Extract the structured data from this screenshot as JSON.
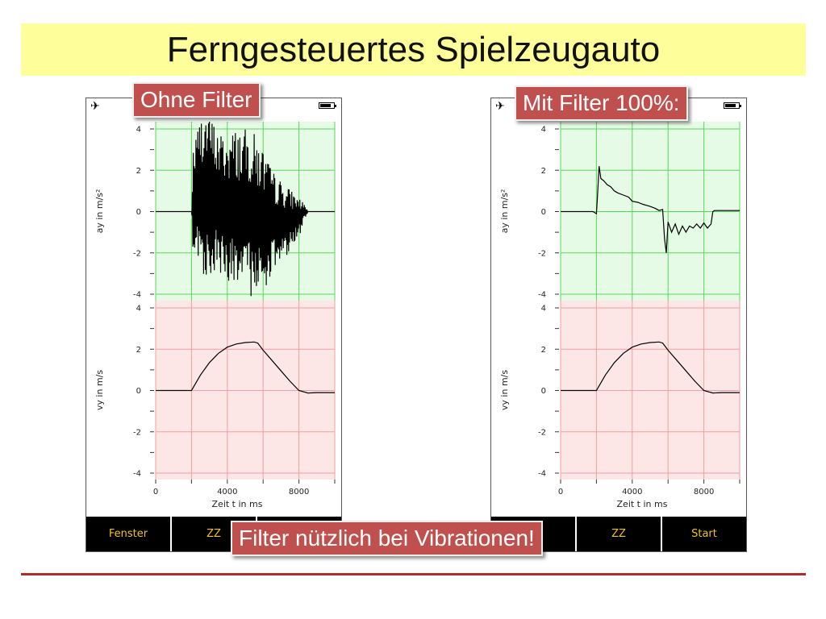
{
  "title": "Ferngesteuertes Spielzeugauto",
  "callouts": {
    "left": "Ohne Filter",
    "right": "Mit Filter 100%:",
    "bottom": "Filter nützlich bei Vibrationen!"
  },
  "status": {
    "plane_icon": "airplane-icon",
    "battery_icon": "battery-icon",
    "battery_level": 0.8,
    "plane_glyph": "✈"
  },
  "tabs_left": [
    "Fenster",
    "ZZ",
    ""
  ],
  "tabs_right": [
    "",
    "ZZ",
    "Start"
  ],
  "colors": {
    "accel_bg": "#e6fbe6",
    "accel_grid": "#58d858",
    "vel_bg": "#fde6e6",
    "vel_grid": "#f0a0a0",
    "callout": "#c0504d",
    "title_bg": "#fefe9a"
  },
  "chart_data": [
    {
      "type": "line",
      "panel": "left",
      "xlabel": "Zeit t in ms",
      "x_ticks": [
        0,
        4000,
        8000
      ],
      "xlim": [
        0,
        10000
      ],
      "subplots": [
        {
          "name": "acceleration",
          "ylabel": "ay in m/s²",
          "ylim": [
            -4,
            4
          ],
          "y_ticks": [
            -4,
            -2,
            0,
            2,
            4
          ],
          "noisy": true,
          "x": [
            0,
            1800,
            2000,
            2100,
            2600,
            3000,
            3500,
            4000,
            4500,
            5000,
            5500,
            6000,
            6500,
            7000,
            7500,
            8000,
            8300,
            8500,
            9000,
            10000
          ],
          "y": [
            0,
            0,
            0,
            0.3,
            1.0,
            0.8,
            0.4,
            0.2,
            0.1,
            0.0,
            -0.2,
            -0.4,
            -0.5,
            -0.5,
            -0.4,
            -0.3,
            0,
            0,
            0,
            0
          ],
          "noise": [
            0,
            0,
            0,
            3.0,
            4.0,
            4.0,
            3.5,
            3.5,
            4.0,
            4.0,
            4.0,
            3.5,
            2.5,
            2.0,
            1.5,
            1.0,
            0.4,
            0,
            0,
            0
          ]
        },
        {
          "name": "velocity",
          "ylabel": "vy in m/s",
          "ylim": [
            -4,
            4
          ],
          "y_ticks": [
            -4,
            -2,
            0,
            2,
            4
          ],
          "x": [
            0,
            2000,
            2100,
            2500,
            3000,
            3500,
            4000,
            4500,
            5000,
            5500,
            5700,
            6000,
            6500,
            7000,
            7500,
            8000,
            8500,
            9000,
            10000
          ],
          "y": [
            0,
            0,
            0.15,
            0.75,
            1.35,
            1.8,
            2.1,
            2.25,
            2.32,
            2.35,
            2.3,
            1.95,
            1.45,
            0.95,
            0.45,
            0,
            -0.12,
            -0.1,
            -0.1
          ]
        }
      ]
    },
    {
      "type": "line",
      "panel": "right",
      "xlabel": "Zeit t in ms",
      "x_ticks": [
        0,
        4000,
        8000
      ],
      "xlim": [
        0,
        10000
      ],
      "subplots": [
        {
          "name": "acceleration",
          "ylabel": "ay in m/s²",
          "ylim": [
            -4,
            4
          ],
          "y_ticks": [
            -4,
            -2,
            0,
            2,
            4
          ],
          "noisy": false,
          "x": [
            0,
            1800,
            2000,
            2050,
            2150,
            2250,
            2400,
            2600,
            2800,
            3000,
            3200,
            3500,
            3800,
            4000,
            4300,
            4600,
            5000,
            5300,
            5500,
            5700,
            5800,
            5900,
            6000,
            6200,
            6400,
            6600,
            6800,
            7000,
            7200,
            7400,
            7600,
            7800,
            8000,
            8200,
            8400,
            8500,
            8600,
            9000,
            10000
          ],
          "y": [
            0,
            0,
            -0.1,
            0.6,
            2.2,
            1.6,
            1.5,
            1.3,
            1.2,
            1.0,
            0.9,
            0.8,
            0.7,
            0.5,
            0.45,
            0.35,
            0.25,
            0.15,
            0.05,
            0.1,
            -1.3,
            -2.0,
            -0.5,
            -1.0,
            -0.6,
            -1.1,
            -0.7,
            -1.0,
            -0.7,
            -0.8,
            -0.6,
            -0.8,
            -0.55,
            -0.8,
            -0.6,
            0,
            0.05,
            0.05,
            0.05
          ]
        },
        {
          "name": "velocity",
          "ylabel": "vy in m/s",
          "ylim": [
            -4,
            4
          ],
          "y_ticks": [
            -4,
            -2,
            0,
            2,
            4
          ],
          "x": [
            0,
            2000,
            2100,
            2500,
            3000,
            3500,
            4000,
            4500,
            5000,
            5500,
            5700,
            6000,
            6500,
            7000,
            7500,
            8000,
            8500,
            9000,
            10000
          ],
          "y": [
            0,
            0,
            0.15,
            0.75,
            1.35,
            1.8,
            2.1,
            2.25,
            2.32,
            2.35,
            2.3,
            1.95,
            1.45,
            0.95,
            0.45,
            0,
            -0.12,
            -0.1,
            -0.1
          ]
        }
      ]
    }
  ]
}
